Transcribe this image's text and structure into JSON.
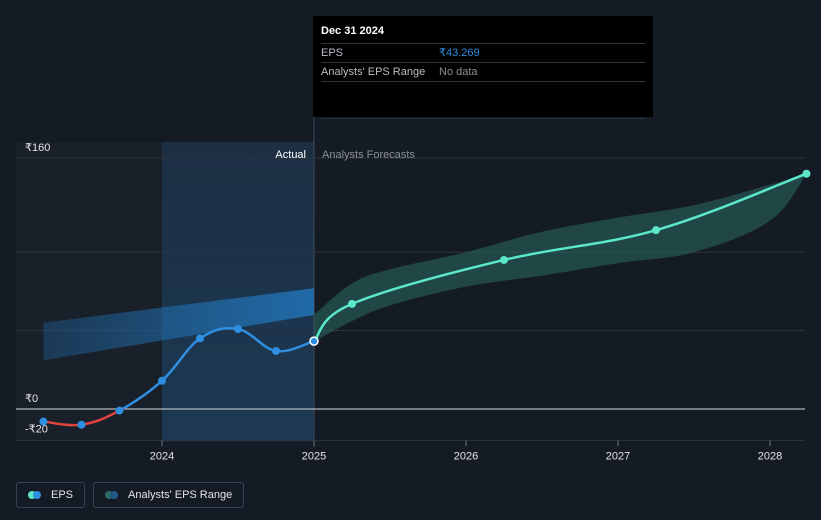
{
  "tooltip": {
    "date": "Dec 31 2024",
    "rows": [
      {
        "label": "EPS",
        "value": "₹43.269"
      },
      {
        "label": "Analysts' EPS Range",
        "value": "No data"
      }
    ]
  },
  "sections": {
    "actual_label": "Actual",
    "forecast_label": "Analysts Forecasts"
  },
  "legend": {
    "eps_label": "EPS",
    "range_label": "Analysts' EPS Range"
  },
  "colors": {
    "background": "#151b24",
    "eps_line": "#2e8ee0",
    "eps_negative": "#e0443e",
    "forecast_line": "#5ce8c8",
    "forecast_band": "#2a6a62",
    "range_band": "#1f6aa8",
    "highlight": "#1c3a56",
    "actual_region": "#1a202a"
  },
  "chart_data": {
    "type": "line",
    "y_tick_labels": [
      {
        "value": 160,
        "label": "₹160"
      },
      {
        "value": 0,
        "label": "₹0"
      },
      {
        "value": -20,
        "label": "-₹20"
      }
    ],
    "x_tick_labels": [
      {
        "value": 2024,
        "label": "2024"
      },
      {
        "value": 2025,
        "label": "2025"
      },
      {
        "value": 2026,
        "label": "2026"
      },
      {
        "value": 2027,
        "label": "2027"
      },
      {
        "value": 2028,
        "label": "2028"
      }
    ],
    "ylim": [
      -20,
      160
    ],
    "xlim": [
      2022.98,
      2028.24
    ],
    "gridlines": [
      160,
      100,
      50,
      0,
      -20
    ],
    "series": [
      {
        "name": "EPS",
        "kind": "actual",
        "points": [
          [
            2023.22,
            -8
          ],
          [
            2023.47,
            -10
          ],
          [
            2023.72,
            -1
          ],
          [
            2024.0,
            18
          ],
          [
            2024.25,
            45
          ],
          [
            2024.5,
            51
          ],
          [
            2024.75,
            37
          ],
          [
            2025.0,
            43.269
          ]
        ]
      },
      {
        "name": "EPS",
        "kind": "forecast",
        "points": [
          [
            2025.0,
            43.269
          ],
          [
            2025.25,
            67
          ],
          [
            2026.25,
            95
          ],
          [
            2027.25,
            114
          ],
          [
            2028.24,
            150
          ]
        ]
      }
    ],
    "bands": [
      {
        "name": "Analysts' EPS Range",
        "kind": "past",
        "x": [
          2023.22,
          2025.0
        ],
        "low": [
          31,
          60
        ],
        "high": [
          55,
          77
        ]
      },
      {
        "name": "Analysts' EPS Range",
        "kind": "forecast",
        "low": [
          [
            2025.0,
            43
          ],
          [
            2025.25,
            56
          ],
          [
            2025.5,
            66
          ],
          [
            2026.0,
            78
          ],
          [
            2026.5,
            85
          ],
          [
            2027.0,
            93
          ],
          [
            2027.5,
            100
          ],
          [
            2028.0,
            120
          ],
          [
            2028.24,
            150
          ]
        ],
        "high": [
          [
            2025.0,
            60
          ],
          [
            2025.25,
            80
          ],
          [
            2025.5,
            89
          ],
          [
            2026.0,
            100
          ],
          [
            2026.5,
            113
          ],
          [
            2027.0,
            122
          ],
          [
            2027.5,
            130
          ],
          [
            2028.0,
            143
          ],
          [
            2028.24,
            150
          ]
        ]
      }
    ],
    "highlight_range": [
      2024.0,
      2025.0
    ],
    "actual_region_end": 2025.0
  }
}
